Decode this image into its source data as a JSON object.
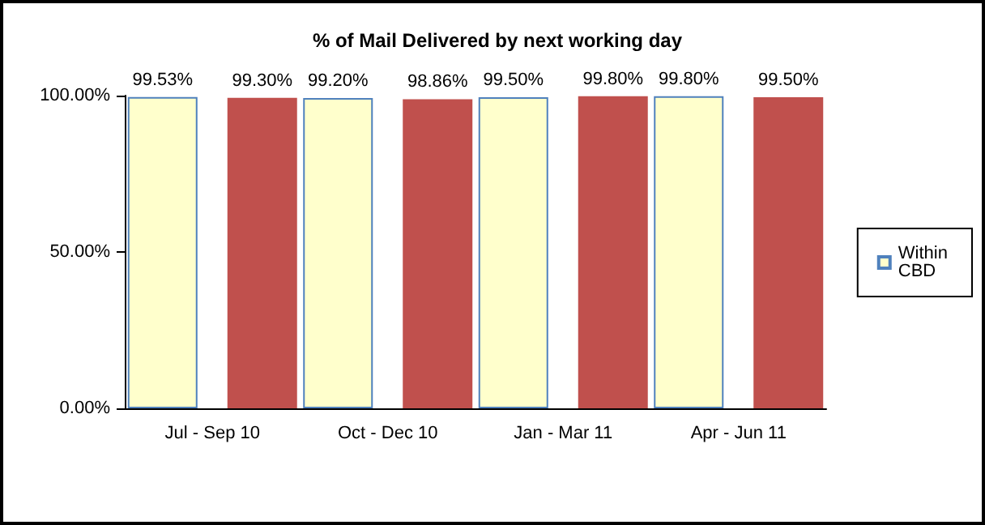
{
  "chart_data": {
    "type": "bar",
    "title": "% of Mail Delivered by next working day",
    "categories": [
      "Jul - Sep 10",
      "Oct - Dec 10",
      "Jan - Mar 11",
      "Apr - Jun 11"
    ],
    "series": [
      {
        "name": "Within CBD",
        "color": "#ffffcc",
        "values": [
          99.53,
          99.2,
          99.5,
          99.8
        ],
        "value_labels": [
          "99.53%",
          "99.20%",
          "99.50%",
          "99.80%"
        ]
      },
      {
        "color": "#c0504d",
        "values": [
          99.3,
          98.86,
          99.8,
          99.5
        ],
        "value_labels": [
          "99.30%",
          "98.86%",
          "99.80%",
          "99.50%"
        ]
      }
    ],
    "ylim": [
      0,
      100
    ],
    "yticks": [
      {
        "value": 0,
        "label": "0.00%"
      },
      {
        "value": 50,
        "label": "50.00%"
      },
      {
        "value": 100,
        "label": "100.00%"
      }
    ],
    "grid": false,
    "legend": "right"
  }
}
